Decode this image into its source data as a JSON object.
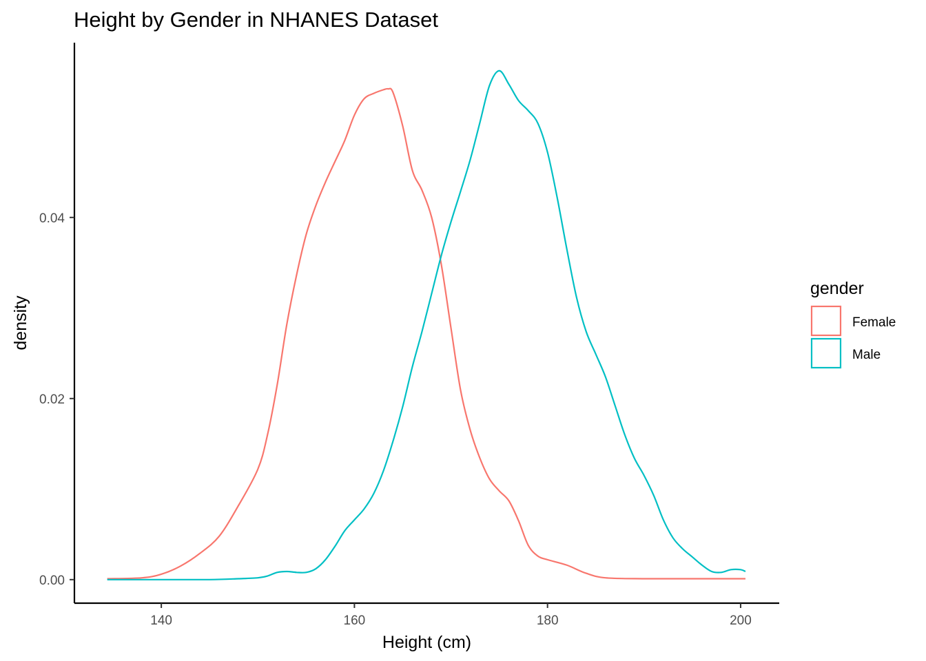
{
  "chart_data": {
    "type": "line",
    "title": "Height by Gender in NHANES Dataset",
    "xlabel": "Height (cm)",
    "ylabel": "density",
    "xlim": [
      131,
      204
    ],
    "ylim": [
      -0.0026,
      0.0593
    ],
    "x_ticks": [
      140,
      160,
      180,
      200
    ],
    "x_tick_labels": [
      "140",
      "160",
      "180",
      "200"
    ],
    "y_ticks": [
      0,
      0.02,
      0.04
    ],
    "y_tick_labels": [
      "0.00",
      "0.02",
      "0.04"
    ],
    "grid": false,
    "legend": {
      "title": "gender",
      "position": "right"
    },
    "series": [
      {
        "name": "Female",
        "color": "#F8766D",
        "points": [
          [
            134.4,
            0.0001
          ],
          [
            138,
            0.0002
          ],
          [
            140,
            0.0006
          ],
          [
            142,
            0.0015
          ],
          [
            144,
            0.0029
          ],
          [
            146,
            0.0048
          ],
          [
            148,
            0.0082
          ],
          [
            150,
            0.0122
          ],
          [
            151,
            0.016
          ],
          [
            152,
            0.0215
          ],
          [
            153,
            0.0282
          ],
          [
            154,
            0.0336
          ],
          [
            155,
            0.0381
          ],
          [
            156,
            0.0413
          ],
          [
            157,
            0.0439
          ],
          [
            158,
            0.0462
          ],
          [
            159,
            0.0485
          ],
          [
            160,
            0.0513
          ],
          [
            161,
            0.0531
          ],
          [
            162,
            0.0537
          ],
          [
            163,
            0.0541
          ],
          [
            163.5,
            0.0542
          ],
          [
            164,
            0.0538
          ],
          [
            165,
            0.0501
          ],
          [
            166,
            0.0452
          ],
          [
            167,
            0.043
          ],
          [
            168,
            0.04
          ],
          [
            169,
            0.0348
          ],
          [
            170,
            0.0278
          ],
          [
            171,
            0.0209
          ],
          [
            172,
            0.0165
          ],
          [
            173,
            0.0134
          ],
          [
            174,
            0.0111
          ],
          [
            175,
            0.0098
          ],
          [
            176,
            0.0087
          ],
          [
            177,
            0.0065
          ],
          [
            178,
            0.0038
          ],
          [
            179,
            0.0026
          ],
          [
            180,
            0.0022
          ],
          [
            182,
            0.0016
          ],
          [
            184,
            0.0007
          ],
          [
            186,
            0.0002
          ],
          [
            190,
            0.0001
          ],
          [
            195,
            0.0001
          ],
          [
            200.5,
            0.0001
          ]
        ]
      },
      {
        "name": "Male",
        "color": "#00BFC4",
        "points": [
          [
            134.4,
            0.0
          ],
          [
            140,
            0.0
          ],
          [
            145,
            0.0
          ],
          [
            148,
            0.0001
          ],
          [
            150,
            0.0002
          ],
          [
            151,
            0.0004
          ],
          [
            152,
            0.0008
          ],
          [
            153,
            0.0009
          ],
          [
            154,
            0.0008
          ],
          [
            155,
            0.0008
          ],
          [
            156,
            0.0012
          ],
          [
            157,
            0.0022
          ],
          [
            158,
            0.0037
          ],
          [
            159,
            0.0054
          ],
          [
            160,
            0.0066
          ],
          [
            161,
            0.0078
          ],
          [
            162,
            0.0095
          ],
          [
            163,
            0.012
          ],
          [
            164,
            0.0153
          ],
          [
            165,
            0.0191
          ],
          [
            166,
            0.0235
          ],
          [
            167,
            0.0274
          ],
          [
            168,
            0.0316
          ],
          [
            169,
            0.0358
          ],
          [
            170,
            0.0395
          ],
          [
            171,
            0.0429
          ],
          [
            172,
            0.0464
          ],
          [
            173,
            0.0505
          ],
          [
            174,
            0.0546
          ],
          [
            175,
            0.0562
          ],
          [
            176,
            0.0547
          ],
          [
            177,
            0.0529
          ],
          [
            178,
            0.0518
          ],
          [
            179,
            0.0504
          ],
          [
            180,
            0.0472
          ],
          [
            181,
            0.0422
          ],
          [
            182,
            0.0365
          ],
          [
            183,
            0.0312
          ],
          [
            184,
            0.0274
          ],
          [
            185,
            0.0249
          ],
          [
            186,
            0.0224
          ],
          [
            187,
            0.0192
          ],
          [
            188,
            0.016
          ],
          [
            189,
            0.0134
          ],
          [
            190,
            0.0115
          ],
          [
            191,
            0.0093
          ],
          [
            192,
            0.0066
          ],
          [
            193,
            0.0046
          ],
          [
            194,
            0.0034
          ],
          [
            195,
            0.0025
          ],
          [
            196,
            0.0016
          ],
          [
            197,
            0.0009
          ],
          [
            198,
            0.0008
          ],
          [
            199,
            0.0011
          ],
          [
            200,
            0.0011
          ],
          [
            200.5,
            0.0009
          ]
        ]
      }
    ]
  }
}
